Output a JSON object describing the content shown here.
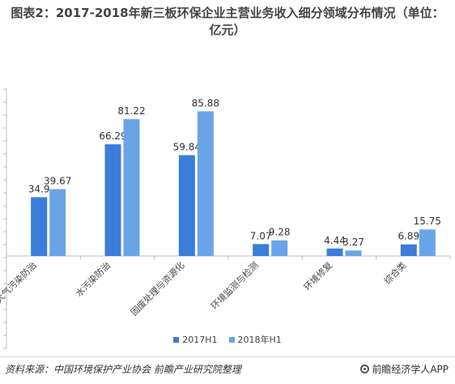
{
  "title": "图表2：2017-2018年新三板环保企业主营业务收入细分领域分布情况（单位：亿元）",
  "source": "资料来源：中国环境保护产业协会  前瞻产业研究院整理",
  "brand": "前瞻经济学人APP",
  "colors": {
    "series1": "#3b7dd8",
    "series2": "#6aa4e8",
    "axis": "#bfbfbf"
  },
  "chart_data": {
    "type": "bar",
    "title": "图表2：2017-2018年新三板环保企业主营业务收入细分领域分布情况（单位：亿元）",
    "categories": [
      "大气污染防治",
      "水污染防治",
      "固废处理与资源化",
      "环境监测与检测",
      "环境修复",
      "综合类"
    ],
    "series": [
      {
        "name": "2017H1",
        "values": [
          34.9,
          66.29,
          59.84,
          7.07,
          4.44,
          6.89
        ]
      },
      {
        "name": "2018年H1",
        "values": [
          39.67,
          81.22,
          85.88,
          9.28,
          3.27,
          15.75
        ]
      }
    ],
    "ylim": [
      0,
      100
    ],
    "legend": "bottom",
    "grid": false
  }
}
